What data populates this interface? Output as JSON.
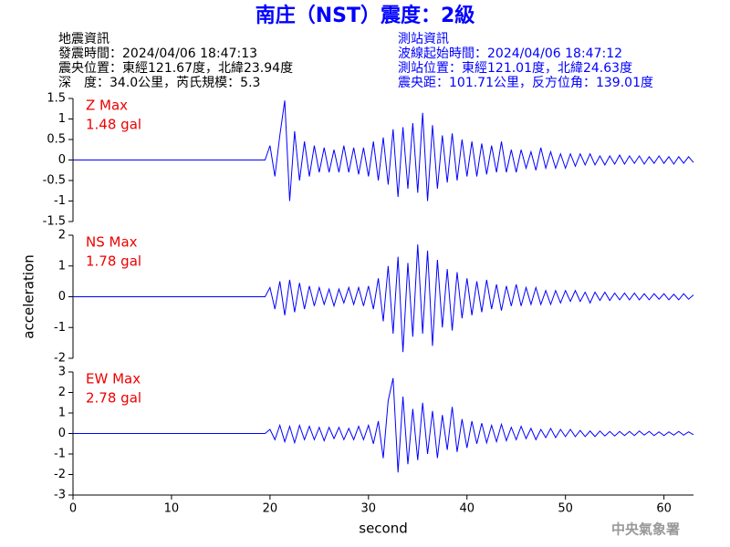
{
  "header": {
    "title": "南庄（NST）震度：2級",
    "left": [
      "地震資訊",
      "發震時間：2024/04/06 18:47:13",
      "震央位置：東經121.67度，北緯23.94度",
      "深　度：34.0公里，芮氏規模：5.3"
    ],
    "right": [
      "測站資訊",
      "波線起始時間：2024/04/06 18:47:12",
      "測站位置：東經121.01度，北緯24.63度",
      "震央距：101.71公里，反方位角：139.01度"
    ],
    "watermark": "中央氣象署"
  },
  "chart_data": [
    {
      "type": "line",
      "annotations": [
        "Z Max",
        "1.48 gal"
      ],
      "xlim": [
        0,
        63
      ],
      "ylim": [
        -1.5,
        1.5
      ],
      "yticks": [
        -1.5,
        -1,
        -0.5,
        0,
        0.5,
        1,
        1.5
      ],
      "x": [
        0,
        19.5,
        20,
        20.5,
        21,
        21.5,
        22,
        22.5,
        23,
        23.5,
        24,
        24.5,
        25,
        25.5,
        26,
        26.5,
        27,
        27.5,
        28,
        28.5,
        29,
        29.5,
        30,
        30.5,
        31,
        31.5,
        32,
        32.5,
        33,
        33.5,
        34,
        34.5,
        35,
        35.5,
        36,
        36.5,
        37,
        37.5,
        38,
        38.5,
        39,
        39.5,
        40,
        40.5,
        41,
        41.5,
        42,
        42.5,
        43,
        43.5,
        44,
        44.5,
        45,
        45.5,
        46,
        46.5,
        47,
        47.5,
        48,
        48.5,
        49,
        49.5,
        50,
        50.5,
        51,
        51.5,
        52,
        52.5,
        53,
        53.5,
        54,
        54.5,
        55,
        55.5,
        56,
        56.5,
        57,
        57.5,
        58,
        58.5,
        59,
        59.5,
        60,
        60.5,
        61,
        61.5,
        62,
        62.5,
        63
      ],
      "series": [
        {
          "color": "#0000ff",
          "values": [
            0,
            0,
            0.35,
            -0.4,
            0.6,
            1.45,
            -1.0,
            0.7,
            -0.5,
            0.45,
            -0.4,
            0.35,
            -0.3,
            0.3,
            -0.3,
            0.25,
            -0.3,
            0.35,
            -0.3,
            0.3,
            -0.35,
            0.3,
            -0.4,
            0.45,
            -0.5,
            0.55,
            -0.6,
            0.75,
            -0.9,
            0.8,
            -0.7,
            0.9,
            -0.8,
            1.15,
            -1.0,
            0.85,
            -0.7,
            0.6,
            -0.55,
            0.65,
            -0.5,
            0.5,
            -0.4,
            0.45,
            -0.4,
            0.4,
            -0.35,
            0.35,
            -0.3,
            0.45,
            -0.3,
            0.25,
            -0.3,
            0.25,
            -0.2,
            0.2,
            -0.25,
            0.3,
            -0.2,
            0.2,
            -0.2,
            0.15,
            -0.2,
            0.15,
            -0.15,
            0.15,
            -0.12,
            0.15,
            -0.12,
            0.1,
            -0.12,
            0.1,
            -0.1,
            0.12,
            -0.1,
            0.1,
            -0.08,
            0.1,
            -0.1,
            0.08,
            -0.08,
            0.1,
            -0.08,
            0.08,
            -0.1,
            0.08,
            -0.08,
            0.08,
            -0.06
          ]
        }
      ]
    },
    {
      "type": "line",
      "annotations": [
        "NS Max",
        "1.78 gal"
      ],
      "xlim": [
        0,
        63
      ],
      "ylim": [
        -2,
        2
      ],
      "yticks": [
        -2,
        -1,
        0,
        1,
        2
      ],
      "ylabel": "acceleration",
      "x": [
        0,
        19.5,
        20,
        20.5,
        21,
        21.5,
        22,
        22.5,
        23,
        23.5,
        24,
        24.5,
        25,
        25.5,
        26,
        26.5,
        27,
        27.5,
        28,
        28.5,
        29,
        29.5,
        30,
        30.5,
        31,
        31.5,
        32,
        32.5,
        33,
        33.5,
        34,
        34.5,
        35,
        35.5,
        36,
        36.5,
        37,
        37.5,
        38,
        38.5,
        39,
        39.5,
        40,
        40.5,
        41,
        41.5,
        42,
        42.5,
        43,
        43.5,
        44,
        44.5,
        45,
        45.5,
        46,
        46.5,
        47,
        47.5,
        48,
        48.5,
        49,
        49.5,
        50,
        50.5,
        51,
        51.5,
        52,
        52.5,
        53,
        53.5,
        54,
        54.5,
        55,
        55.5,
        56,
        56.5,
        57,
        57.5,
        58,
        58.5,
        59,
        59.5,
        60,
        60.5,
        61,
        61.5,
        62,
        62.5,
        63
      ],
      "series": [
        {
          "color": "#0000ff",
          "values": [
            0,
            0,
            0.3,
            -0.4,
            0.5,
            -0.6,
            0.55,
            -0.5,
            0.45,
            -0.4,
            0.35,
            -0.3,
            0.3,
            -0.25,
            0.25,
            -0.3,
            0.25,
            -0.2,
            0.3,
            -0.25,
            0.3,
            -0.3,
            0.35,
            -0.4,
            0.6,
            -0.8,
            1.0,
            -1.2,
            1.3,
            -1.8,
            1.1,
            -1.3,
            1.7,
            -1.2,
            1.5,
            -1.6,
            1.2,
            -1.0,
            0.9,
            -1.1,
            0.8,
            -0.7,
            0.6,
            -0.6,
            0.5,
            -0.5,
            0.55,
            -0.4,
            0.4,
            -0.45,
            0.35,
            -0.3,
            0.4,
            -0.3,
            0.3,
            -0.25,
            0.3,
            -0.25,
            0.2,
            -0.25,
            0.2,
            -0.2,
            0.2,
            -0.15,
            0.2,
            -0.15,
            0.15,
            -0.2,
            0.15,
            -0.12,
            0.15,
            -0.12,
            0.12,
            -0.1,
            0.12,
            -0.1,
            0.12,
            -0.1,
            0.1,
            -0.1,
            0.1,
            -0.08,
            0.1,
            -0.1,
            0.08,
            -0.1,
            0.1,
            -0.08,
            0.06
          ]
        }
      ]
    },
    {
      "type": "line",
      "annotations": [
        "EW Max",
        "2.78 gal"
      ],
      "xlim": [
        0,
        63
      ],
      "ylim": [
        -3,
        3
      ],
      "yticks": [
        -3,
        -2,
        -1,
        0,
        1,
        2,
        3
      ],
      "xticks": [
        0,
        10,
        20,
        30,
        40,
        50,
        60
      ],
      "xlabel": "second",
      "x": [
        0,
        19.5,
        20,
        20.5,
        21,
        21.5,
        22,
        22.5,
        23,
        23.5,
        24,
        24.5,
        25,
        25.5,
        26,
        26.5,
        27,
        27.5,
        28,
        28.5,
        29,
        29.5,
        30,
        30.5,
        31,
        31.5,
        32,
        32.5,
        33,
        33.5,
        34,
        34.5,
        35,
        35.5,
        36,
        36.5,
        37,
        37.5,
        38,
        38.5,
        39,
        39.5,
        40,
        40.5,
        41,
        41.5,
        42,
        42.5,
        43,
        43.5,
        44,
        44.5,
        45,
        45.5,
        46,
        46.5,
        47,
        47.5,
        48,
        48.5,
        49,
        49.5,
        50,
        50.5,
        51,
        51.5,
        52,
        52.5,
        53,
        53.5,
        54,
        54.5,
        55,
        55.5,
        56,
        56.5,
        57,
        57.5,
        58,
        58.5,
        59,
        59.5,
        60,
        60.5,
        61,
        61.5,
        62,
        62.5,
        63
      ],
      "series": [
        {
          "color": "#0000ff",
          "values": [
            0,
            0,
            0.2,
            -0.3,
            0.4,
            -0.4,
            0.35,
            -0.45,
            0.4,
            -0.3,
            0.35,
            -0.3,
            0.3,
            -0.35,
            0.3,
            -0.25,
            0.3,
            -0.3,
            0.25,
            -0.3,
            0.35,
            -0.3,
            0.4,
            -0.5,
            0.6,
            -1.2,
            1.6,
            2.7,
            -1.9,
            1.8,
            -1.5,
            1.2,
            -1.3,
            1.5,
            -1.0,
            1.1,
            -1.2,
            0.9,
            -0.8,
            1.3,
            -0.9,
            0.7,
            -0.7,
            0.6,
            -0.5,
            0.5,
            -0.45,
            0.4,
            -0.4,
            0.45,
            -0.35,
            0.3,
            -0.3,
            0.35,
            -0.25,
            0.25,
            -0.3,
            0.2,
            -0.2,
            0.25,
            -0.2,
            0.2,
            -0.15,
            0.2,
            -0.15,
            0.15,
            -0.15,
            0.12,
            -0.15,
            0.12,
            -0.12,
            0.1,
            -0.12,
            0.1,
            -0.1,
            0.1,
            -0.1,
            0.12,
            -0.08,
            0.1,
            -0.1,
            0.08,
            -0.1,
            0.08,
            -0.08,
            0.1,
            -0.08,
            0.08,
            -0.06
          ]
        }
      ]
    }
  ]
}
